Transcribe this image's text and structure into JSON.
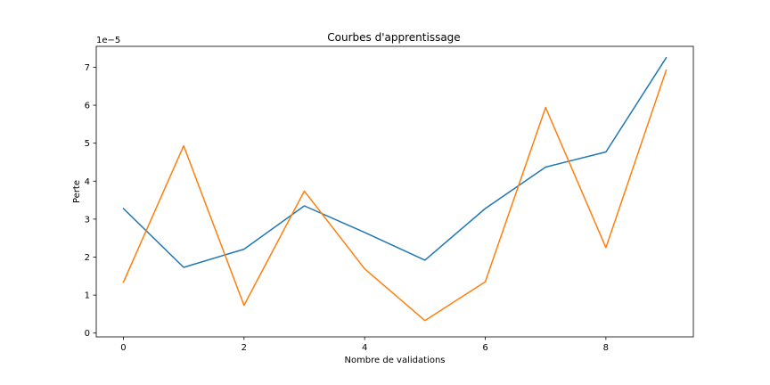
{
  "chart_data": {
    "type": "line",
    "title": "Courbes d'apprentissage",
    "xlabel": "Nombre de validations",
    "ylabel": "Perte",
    "y_offset_label": "1e−5",
    "xlim": [
      -0.45,
      9.45
    ],
    "ylim": [
      -0.1,
      7.55
    ],
    "x_ticks": [
      0,
      2,
      4,
      6,
      8
    ],
    "y_ticks": [
      0,
      1,
      2,
      3,
      4,
      5,
      6,
      7
    ],
    "x": [
      0,
      1,
      2,
      3,
      4,
      5,
      6,
      7,
      8,
      9
    ],
    "series": [
      {
        "color": "#1f77b4",
        "values": [
          3.28,
          1.73,
          2.21,
          3.35,
          2.65,
          1.92,
          3.28,
          4.37,
          4.77,
          7.25
        ]
      },
      {
        "color": "#ff7f0e",
        "values": [
          1.34,
          4.93,
          0.73,
          3.74,
          1.69,
          0.33,
          1.35,
          5.94,
          2.25,
          6.92
        ]
      }
    ],
    "grid": false,
    "legend": false
  }
}
